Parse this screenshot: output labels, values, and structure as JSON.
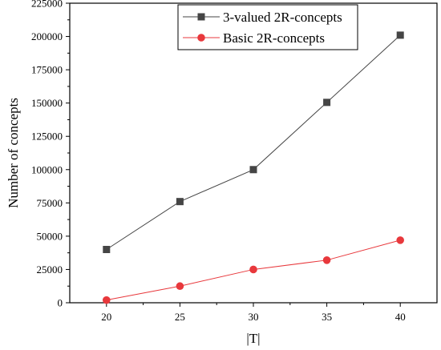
{
  "chart_data": {
    "type": "line",
    "title": "",
    "xlabel": "|T|",
    "ylabel": "Number of concepts",
    "x": [
      20,
      25,
      30,
      35,
      40
    ],
    "xlim": [
      17.5,
      42.5
    ],
    "ylim": [
      0,
      225000
    ],
    "xticks": [
      20,
      25,
      30,
      35,
      40
    ],
    "yticks": [
      0,
      25000,
      50000,
      75000,
      100000,
      125000,
      150000,
      175000,
      200000,
      225000
    ],
    "grid": false,
    "legend_position": "top-center",
    "series": [
      {
        "name": "3-valued 2R-concepts",
        "values": [
          40000,
          76000,
          100000,
          150500,
          201000
        ],
        "color": "#454545",
        "marker": "square"
      },
      {
        "name": "Basic 2R-concepts",
        "values": [
          2000,
          12500,
          25000,
          32000,
          47000
        ],
        "color": "#e8383c",
        "marker": "circle"
      }
    ]
  }
}
